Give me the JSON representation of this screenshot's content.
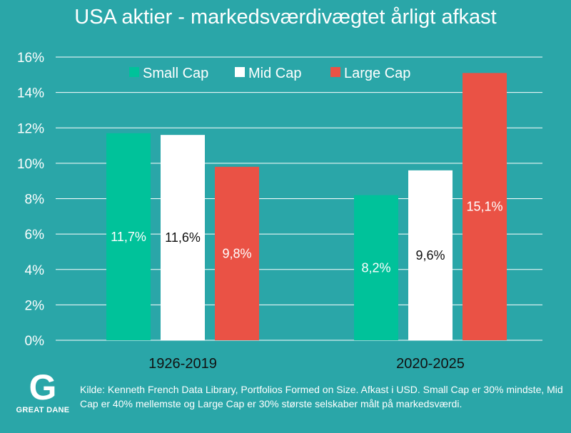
{
  "chart_data": {
    "type": "bar",
    "title": "USA aktier - markedsværdivægtet årligt afkast",
    "categories": [
      "1926-2019",
      "2020-2025"
    ],
    "series": [
      {
        "name": "Small Cap",
        "color": "#00c29a",
        "label_color": "#ffffff",
        "values": [
          11.7,
          8.2
        ],
        "labels": [
          "11,7%",
          "8,2%"
        ]
      },
      {
        "name": "Mid Cap",
        "color": "#ffffff",
        "label_color": "#111111",
        "values": [
          11.6,
          9.6
        ],
        "labels": [
          "11,6%",
          "9,6%"
        ]
      },
      {
        "name": "Large Cap",
        "color": "#ea5245",
        "label_color": "#ffffff",
        "values": [
          9.8,
          15.1
        ],
        "labels": [
          "9,8%",
          "15,1%"
        ]
      }
    ],
    "ylim": [
      0,
      16
    ],
    "yticks": [
      0,
      2,
      4,
      6,
      8,
      10,
      12,
      14,
      16
    ],
    "ytick_labels": [
      "0%",
      "2%",
      "4%",
      "6%",
      "8%",
      "10%",
      "12%",
      "14%",
      "16%"
    ],
    "grid": true,
    "legend_position": "top"
  },
  "footer": {
    "source": "Kilde: Kenneth French Data Library, Portfolios Formed on Size. Afkast i USD. Small Cap er 30% mindste, Mid Cap er 40% mellemste og Large Cap er 30% største selskaber målt på markedsværdi.",
    "logo_letter": "G",
    "logo_text": "GREAT DANE"
  }
}
